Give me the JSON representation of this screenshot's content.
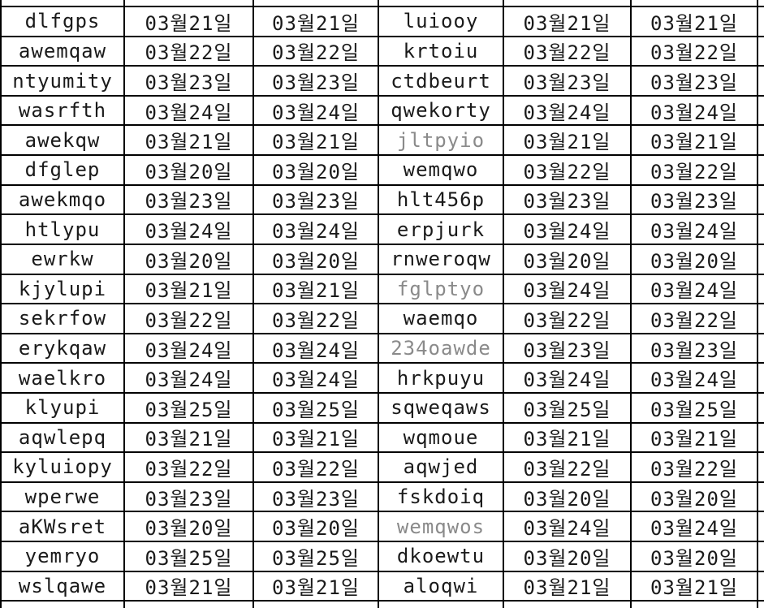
{
  "colors": {
    "background": "#ffffff",
    "grid_line": "#000000",
    "text": "#1a1a1a",
    "muted_text": "#8a8a8a"
  },
  "table": {
    "column_kinds": [
      "name",
      "date",
      "date",
      "name",
      "date",
      "date"
    ],
    "rows": [
      {
        "name1": "dlfgps",
        "date1": "03월21일",
        "date2": "03월21일",
        "name2": "luiooy",
        "date3": "03월21일",
        "date4": "03월21일"
      },
      {
        "name1": "awemqaw",
        "date1": "03월22일",
        "date2": "03월22일",
        "name2": "krtoiu",
        "date3": "03월22일",
        "date4": "03월22일"
      },
      {
        "name1": "ntyumity",
        "date1": "03월23일",
        "date2": "03월23일",
        "name2": "ctdbeurt",
        "date3": "03월23일",
        "date4": "03월23일"
      },
      {
        "name1": "wasrfth",
        "date1": "03월24일",
        "date2": "03월24일",
        "name2": "qwekorty",
        "date3": "03월24일",
        "date4": "03월24일"
      },
      {
        "name1": "awekqw",
        "date1": "03월21일",
        "date2": "03월21일",
        "name2": "jltpyio",
        "date3": "03월21일",
        "date4": "03월21일",
        "name2_muted": true
      },
      {
        "name1": "dfglep",
        "date1": "03월20일",
        "date2": "03월20일",
        "name2": "wemqwo",
        "date3": "03월22일",
        "date4": "03월22일"
      },
      {
        "name1": "awekmqo",
        "date1": "03월23일",
        "date2": "03월23일",
        "name2": "hlt456p",
        "date3": "03월23일",
        "date4": "03월23일"
      },
      {
        "name1": "htlypu",
        "date1": "03월24일",
        "date2": "03월24일",
        "name2": "erpjurk",
        "date3": "03월24일",
        "date4": "03월24일"
      },
      {
        "name1": "ewrkw",
        "date1": "03월20일",
        "date2": "03월20일",
        "name2": "rnweroqw",
        "date3": "03월20일",
        "date4": "03월20일"
      },
      {
        "name1": "kjylupi",
        "date1": "03월21일",
        "date2": "03월21일",
        "name2": "fglptyo",
        "date3": "03월24일",
        "date4": "03월24일",
        "name2_muted": true
      },
      {
        "name1": "sekrfow",
        "date1": "03월22일",
        "date2": "03월22일",
        "name2": "waemqo",
        "date3": "03월22일",
        "date4": "03월22일"
      },
      {
        "name1": "erykqaw",
        "date1": "03월24일",
        "date2": "03월24일",
        "name2": "234oawde",
        "date3": "03월23일",
        "date4": "03월23일",
        "name2_muted": true
      },
      {
        "name1": "waelkro",
        "date1": "03월24일",
        "date2": "03월24일",
        "name2": "hrkpuyu",
        "date3": "03월24일",
        "date4": "03월24일"
      },
      {
        "name1": "klyupi",
        "date1": "03월25일",
        "date2": "03월25일",
        "name2": "sqweqaws",
        "date3": "03월25일",
        "date4": "03월25일"
      },
      {
        "name1": "aqwlepq",
        "date1": "03월21일",
        "date2": "03월21일",
        "name2": "wqmoue",
        "date3": "03월21일",
        "date4": "03월21일"
      },
      {
        "name1": "kyluiopy",
        "date1": "03월22일",
        "date2": "03월22일",
        "name2": "aqwjed",
        "date3": "03월22일",
        "date4": "03월22일"
      },
      {
        "name1": "wperwe",
        "date1": "03월23일",
        "date2": "03월23일",
        "name2": "fskdoiq",
        "date3": "03월20일",
        "date4": "03월20일"
      },
      {
        "name1": "aKWsret",
        "date1": "03월20일",
        "date2": "03월20일",
        "name2": "wemqwos",
        "date3": "03월24일",
        "date4": "03월24일",
        "name2_muted": true
      },
      {
        "name1": "yemryo",
        "date1": "03월25일",
        "date2": "03월25일",
        "name2": "dkoewtu",
        "date3": "03월20일",
        "date4": "03월20일"
      },
      {
        "name1": "wslqawe",
        "date1": "03월21일",
        "date2": "03월21일",
        "name2": "aloqwi",
        "date3": "03월21일",
        "date4": "03월21일"
      }
    ]
  }
}
